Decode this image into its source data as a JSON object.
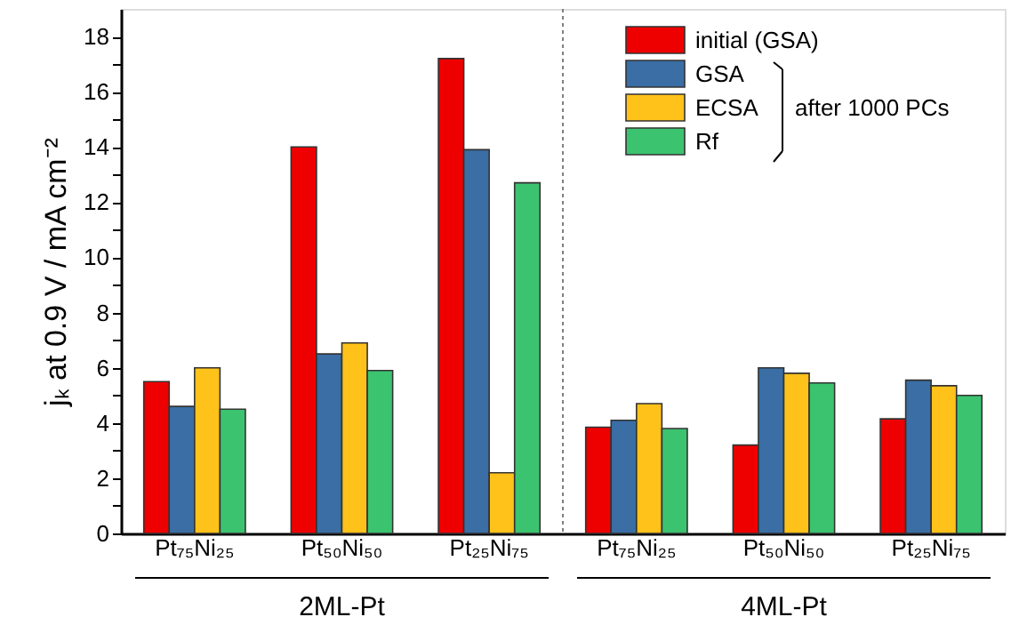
{
  "chart_data": {
    "type": "bar",
    "categories": [
      "Pt₇₅Ni₂₅",
      "Pt₅₀Ni₅₀",
      "Pt₂₅Ni₇₅",
      "Pt₇₅Ni₂₅",
      "Pt₅₀Ni₅₀",
      "Pt₂₅Ni₇₅"
    ],
    "series": [
      {
        "name": "initial (GSA)",
        "color": "#ee0000",
        "values": [
          5.5,
          14.0,
          17.2,
          3.85,
          3.2,
          4.15
        ]
      },
      {
        "name": "GSA",
        "color": "#3a6ea5",
        "values": [
          4.6,
          6.5,
          13.9,
          4.1,
          6.0,
          5.55
        ]
      },
      {
        "name": "ECSA",
        "color": "#ffc21a",
        "values": [
          6.0,
          6.9,
          2.2,
          4.7,
          5.8,
          5.35
        ]
      },
      {
        "name": "Rf",
        "color": "#3cc36f",
        "values": [
          4.5,
          5.9,
          12.7,
          3.8,
          5.45,
          5.0
        ]
      }
    ],
    "ylabel": "jₖ at 0.9 V / mA cm⁻²",
    "ylim": [
      0,
      19
    ],
    "yticks": [
      0,
      {
        "value": 1,
        "label": null
      },
      2,
      {
        "value": 3,
        "label": null
      },
      4,
      {
        "value": 5,
        "label": null
      },
      6,
      {
        "value": 7,
        "label": null
      },
      8,
      {
        "value": 9,
        "label": null
      },
      10,
      {
        "value": 11,
        "label": null
      },
      12,
      {
        "value": 13,
        "label": null
      },
      14,
      {
        "value": 15,
        "label": null
      },
      16,
      {
        "value": 17,
        "label": null
      },
      18
    ],
    "annotations": [
      "2ML-Pt",
      "4ML-Pt",
      "after 1000 PCs"
    ],
    "legend": "top right",
    "grid": false
  }
}
